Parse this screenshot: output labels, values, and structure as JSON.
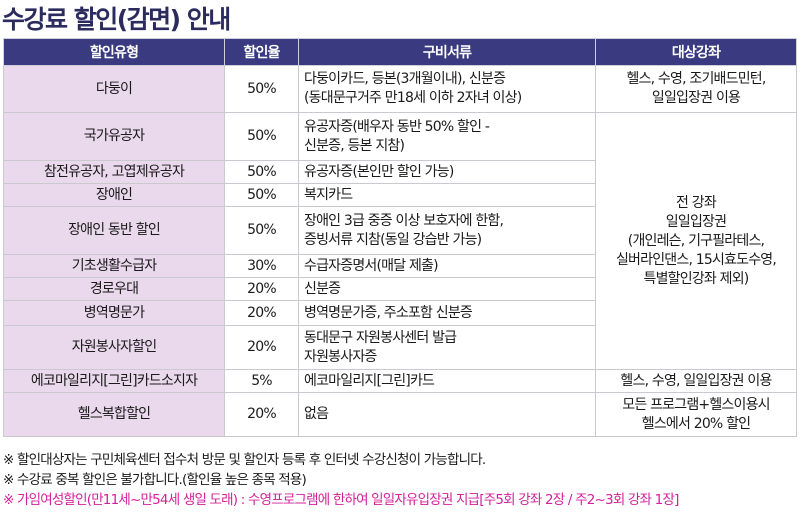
{
  "title": "수강료 할인(감면) 안내",
  "headers": [
    "할인유형",
    "할인율",
    "구비서류",
    "대상강좌"
  ],
  "rows": [
    {
      "type": "다둥이",
      "rate": "50%",
      "docs": [
        "다둥이카드, 등본(3개월이내), 신분증",
        "(동대문구거주 만18세 이하 2자녀 이상)"
      ],
      "target": [
        "헬스, 수영, 조기배드민턴,",
        "일일입장권 이용"
      ]
    },
    {
      "type": "국가유공자",
      "rate": "50%",
      "docs": [
        "유공자증(배우자 동반 50% 할인 -",
        "신분증, 등본 지참)"
      ]
    },
    {
      "type": "참전유공자, 고엽제유공자",
      "rate": "50%",
      "docs": [
        "유공자증(본인만 할인 가능)"
      ]
    },
    {
      "type": "장애인",
      "rate": "50%",
      "docs": [
        "복지카드"
      ]
    },
    {
      "type": "장애인 동반 할인",
      "rate": "50%",
      "docs": [
        "장애인 3급 중증 이상 보호자에 한함,",
        "증빙서류 지참(동일 강습반 가능)"
      ]
    },
    {
      "type": "기초생활수급자",
      "rate": "30%",
      "docs": [
        "수급자증명서(매달 제출)"
      ]
    },
    {
      "type": "경로우대",
      "rate": "20%",
      "docs": [
        "신분증"
      ]
    },
    {
      "type": "병역명문가",
      "rate": "20%",
      "docs": [
        "병역명문가증, 주소포함 신분증"
      ]
    },
    {
      "type": "자원봉사자할인",
      "rate": "20%",
      "docs": [
        "동대문구 자원봉사센터 발급",
        "자원봉사자증"
      ]
    },
    {
      "type": "에코마일리지[그린]카드소지자",
      "rate": "5%",
      "docs": [
        "에코마일리지[그린]카드"
      ],
      "target": [
        "헬스, 수영, 일일입장권 이용"
      ]
    },
    {
      "type": "헬스복합할인",
      "rate": "20%",
      "docs": [
        "없음"
      ],
      "target": [
        "모든 프로그램+헬스이용시",
        "헬스에서 20% 할인"
      ]
    }
  ],
  "merged_target": [
    "전 강좌",
    "일일입장권",
    "(개인레슨, 기구필라테스,",
    "실버라인댄스, 15시효도수영,",
    "특별할인강좌 제외)"
  ],
  "notes": [
    "※ 할인대상자는 구민체육센터 접수처 방문 및 할인자 등록 후 인터넷 수강신청이 가능합니다.",
    "※ 수강료 중복 할인은 불가합니다.(할인율 높은 종목 적용)"
  ],
  "note_highlight": "※ 가임여성할인(만11세~만54세 생일 도래) : 수영프로그램에 한하여 일일자유입장권 지급[주5회 강좌 2장 / 주2~3회 강좌 1장]",
  "colors": {
    "header_bg": "#393a80",
    "type_bg": "#ead8ec",
    "title": "#2b2b5e",
    "highlight": "#d4209a"
  }
}
